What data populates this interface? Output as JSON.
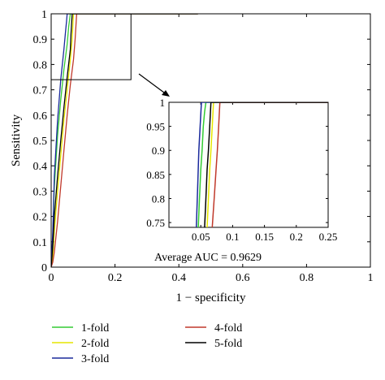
{
  "chart_data": [
    {
      "type": "line",
      "role": "main",
      "xlabel": "1 − specificity",
      "ylabel": "Sensitivity",
      "xlim": [
        0,
        1
      ],
      "ylim": [
        0,
        1
      ],
      "x_ticks": [
        "0",
        "0.2",
        "0.4",
        "0.6",
        "0.8",
        "1"
      ],
      "x_tick_values": [
        0,
        0.2,
        0.4,
        0.6,
        0.8,
        1
      ],
      "y_ticks": [
        "0",
        "0.1",
        "0.2",
        "0.3",
        "0.4",
        "0.5",
        "0.6",
        "0.7",
        "0.8",
        "0.9",
        "1"
      ],
      "y_tick_values": [
        0,
        0.1,
        0.2,
        0.3,
        0.4,
        0.5,
        0.6,
        0.7,
        0.8,
        0.9,
        1
      ],
      "grid": false,
      "legend_position": "bottom",
      "zoom_box": {
        "x": [
          0,
          0.25
        ],
        "y": [
          0.74,
          1
        ]
      },
      "series": [
        {
          "name": "1-fold",
          "color": "#33cc33",
          "x": [
            0,
            0.005,
            0.01,
            0.02,
            0.03,
            0.04,
            0.05,
            0.055,
            0.06,
            0.1,
            0.2,
            0.3,
            0.46
          ],
          "y": [
            0,
            0.12,
            0.32,
            0.52,
            0.66,
            0.78,
            0.88,
            0.95,
            1,
            1,
            1,
            1,
            1
          ]
        },
        {
          "name": "2-fold",
          "color": "#e6e600",
          "x": [
            0,
            0.005,
            0.01,
            0.02,
            0.03,
            0.04,
            0.05,
            0.06,
            0.066,
            0.07,
            0.1,
            0.2,
            0.3,
            0.46
          ],
          "y": [
            0,
            0.04,
            0.14,
            0.3,
            0.44,
            0.58,
            0.7,
            0.82,
            0.9,
            1,
            1,
            1,
            1,
            1
          ]
        },
        {
          "name": "3-fold",
          "color": "#1a2a9c",
          "x": [
            0,
            0.005,
            0.01,
            0.02,
            0.03,
            0.04,
            0.045,
            0.048,
            0.05,
            0.1,
            0.2,
            0.3,
            0.46
          ],
          "y": [
            0,
            0.14,
            0.36,
            0.58,
            0.74,
            0.86,
            0.93,
            0.97,
            1,
            1,
            1,
            1,
            1
          ]
        },
        {
          "name": "4-fold",
          "color": "#c0392b",
          "x": [
            0,
            0.005,
            0.01,
            0.02,
            0.03,
            0.04,
            0.05,
            0.06,
            0.07,
            0.075,
            0.08,
            0.1,
            0.2,
            0.3,
            0.46
          ],
          "y": [
            0,
            0.02,
            0.06,
            0.18,
            0.32,
            0.46,
            0.6,
            0.72,
            0.82,
            0.9,
            1,
            1,
            1,
            1,
            1
          ]
        },
        {
          "name": "5-fold",
          "color": "#000000",
          "x": [
            0,
            0.005,
            0.01,
            0.02,
            0.03,
            0.04,
            0.05,
            0.06,
            0.062,
            0.066,
            0.1,
            0.2,
            0.3,
            0.46
          ],
          "y": [
            0,
            0.08,
            0.2,
            0.36,
            0.5,
            0.63,
            0.75,
            0.86,
            0.92,
            1,
            1,
            1,
            1,
            1
          ]
        }
      ]
    },
    {
      "type": "line",
      "role": "inset",
      "xlim": [
        0,
        0.25
      ],
      "ylim": [
        0.74,
        1
      ],
      "x_ticks": [
        "0.05",
        "0.1",
        "0.15",
        "0.2",
        "0.25"
      ],
      "x_tick_values": [
        0.05,
        0.1,
        0.15,
        0.2,
        0.25
      ],
      "y_ticks": [
        "0.75",
        "0.8",
        "0.85",
        "0.9",
        "0.95",
        "1"
      ],
      "y_tick_values": [
        0.75,
        0.8,
        0.85,
        0.9,
        0.95,
        1
      ],
      "annotation": "Average AUC = 0.9629",
      "series": [
        {
          "name": "1-fold",
          "color": "#33cc33",
          "x": [
            0.046,
            0.048,
            0.05,
            0.052,
            0.054,
            0.056,
            0.058,
            0.25
          ],
          "y": [
            0.74,
            0.8,
            0.86,
            0.9,
            0.95,
            0.98,
            1,
            1
          ]
        },
        {
          "name": "2-fold",
          "color": "#e6e600",
          "x": [
            0.06,
            0.062,
            0.064,
            0.066,
            0.068,
            0.07,
            0.25
          ],
          "y": [
            0.74,
            0.8,
            0.86,
            0.9,
            0.95,
            1,
            1
          ]
        },
        {
          "name": "3-fold",
          "color": "#1a2a9c",
          "x": [
            0.043,
            0.045,
            0.047,
            0.049,
            0.051,
            0.25
          ],
          "y": [
            0.74,
            0.82,
            0.9,
            0.95,
            1,
            1
          ]
        },
        {
          "name": "4-fold",
          "color": "#c0392b",
          "x": [
            0.068,
            0.071,
            0.074,
            0.076,
            0.078,
            0.08,
            0.25
          ],
          "y": [
            0.74,
            0.8,
            0.86,
            0.9,
            0.95,
            1,
            1
          ]
        },
        {
          "name": "5-fold",
          "color": "#000000",
          "x": [
            0.056,
            0.058,
            0.06,
            0.062,
            0.064,
            0.066,
            0.25
          ],
          "y": [
            0.74,
            0.8,
            0.86,
            0.9,
            0.95,
            1,
            1
          ]
        }
      ]
    }
  ]
}
